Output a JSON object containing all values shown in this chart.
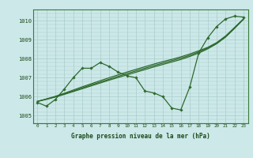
{
  "title": "Graphe pression niveau de la mer (hPa)",
  "bg_color": "#cce8e8",
  "grid_color": "#aacccc",
  "line_color": "#2d6a2d",
  "x_ticks": [
    0,
    1,
    2,
    3,
    4,
    5,
    6,
    7,
    8,
    9,
    10,
    11,
    12,
    13,
    14,
    15,
    16,
    17,
    18,
    19,
    20,
    21,
    22,
    23
  ],
  "ylim": [
    1004.6,
    1010.6
  ],
  "yticks": [
    1005,
    1006,
    1007,
    1008,
    1009,
    1010
  ],
  "main_series": [
    1005.7,
    1005.5,
    1005.85,
    1006.4,
    1007.0,
    1007.5,
    1007.5,
    1007.8,
    1007.6,
    1007.3,
    1007.1,
    1007.0,
    1006.3,
    1006.2,
    1006.0,
    1005.4,
    1005.3,
    1006.5,
    1008.3,
    1009.1,
    1009.7,
    1010.1,
    1010.25,
    1010.2
  ],
  "smooth_line1": [
    1005.75,
    1005.88,
    1006.02,
    1006.18,
    1006.35,
    1006.52,
    1006.68,
    1006.84,
    1007.0,
    1007.15,
    1007.3,
    1007.44,
    1007.58,
    1007.72,
    1007.85,
    1007.97,
    1008.1,
    1008.25,
    1008.42,
    1008.6,
    1008.85,
    1009.2,
    1009.65,
    1010.1
  ],
  "smooth_line2": [
    1005.75,
    1005.87,
    1006.0,
    1006.15,
    1006.3,
    1006.46,
    1006.62,
    1006.77,
    1006.92,
    1007.07,
    1007.22,
    1007.36,
    1007.5,
    1007.64,
    1007.77,
    1007.9,
    1008.03,
    1008.18,
    1008.36,
    1008.56,
    1008.82,
    1009.17,
    1009.62,
    1010.1
  ],
  "smooth_line3": [
    1005.75,
    1005.86,
    1005.98,
    1006.12,
    1006.27,
    1006.42,
    1006.57,
    1006.72,
    1006.87,
    1007.01,
    1007.15,
    1007.29,
    1007.43,
    1007.57,
    1007.7,
    1007.83,
    1007.96,
    1008.12,
    1008.3,
    1008.52,
    1008.79,
    1009.14,
    1009.6,
    1010.08
  ]
}
